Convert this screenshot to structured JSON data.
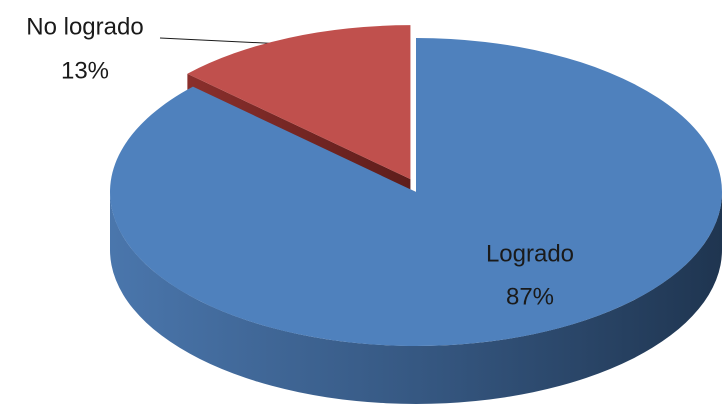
{
  "chart_data": {
    "type": "pie",
    "three_d": true,
    "categories": [
      "Logrado",
      "No logrado"
    ],
    "values": [
      87,
      13
    ],
    "value_labels": [
      "87%",
      "13%"
    ],
    "colors": [
      "#4f81bd",
      "#c0504d"
    ],
    "exploded": [
      false,
      true
    ]
  }
}
